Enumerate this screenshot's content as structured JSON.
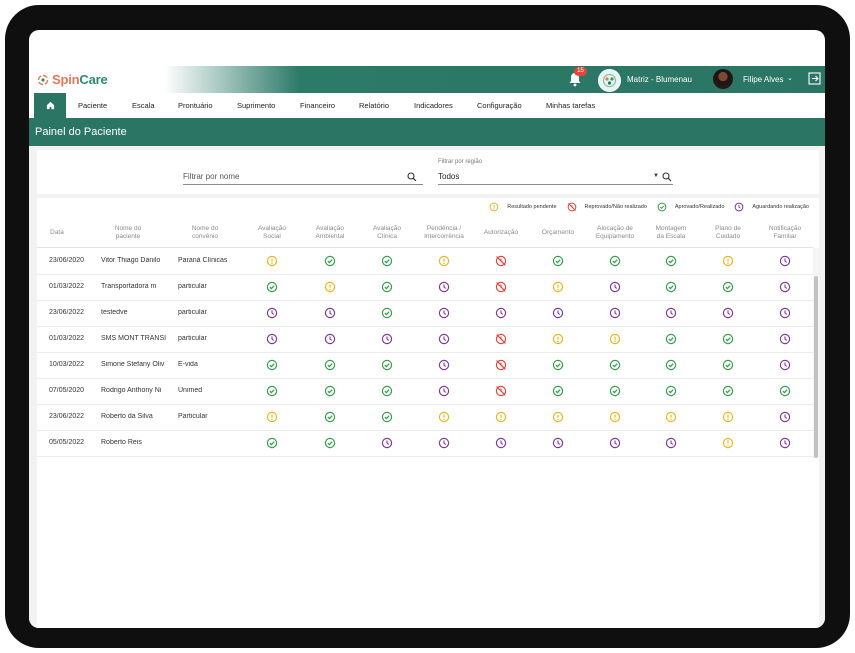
{
  "app": {
    "brand_part1": "Spin",
    "brand_part2": "Care"
  },
  "header": {
    "notification_count": "15",
    "org_name": "Matriz - Blumenau",
    "user_name": "Filipe Alves"
  },
  "nav": {
    "items": [
      "Paciente",
      "Escala",
      "Prontuário",
      "Suprimento",
      "Financeiro",
      "Relatório",
      "Indicadores",
      "Configuração",
      "Minhas tarefas"
    ]
  },
  "page": {
    "title": "Painel do Paciente"
  },
  "filters": {
    "name_placeholder": "Filtrar por nome",
    "region_label": "Filtrar por região",
    "region_value": "Todos"
  },
  "legend": [
    {
      "status": "pending",
      "label": "Resultado pendente"
    },
    {
      "status": "rejected",
      "label": "Reprovado/Não realizado"
    },
    {
      "status": "approved",
      "label": "Aprovado/Realizado"
    },
    {
      "status": "waiting",
      "label": "Aguardando realização"
    }
  ],
  "colors": {
    "teal": "#2b7564",
    "pending": "#e5b52a",
    "rejected": "#d8493f",
    "approved": "#3a9b4c",
    "waiting": "#7e3b93"
  },
  "table": {
    "columns": [
      "Data",
      "Nome do\npaciente",
      "Nome do\nconvênio",
      "Avaliação\nSocial",
      "Avaliação\nAmbiental",
      "Avaliação\nClínica",
      "Pendência /\nIntercorrência",
      "Autorização",
      "Orçamento",
      "Alocação de\nEquipamento",
      "Montagem\nda Escala",
      "Plano de\nCuidado",
      "Notificação\nFamiliar"
    ],
    "rows": [
      {
        "date": "23/06/2020",
        "patient": "Vitor Thiago Danilo",
        "insurer": "Paraná Clínicas",
        "status": [
          "pending",
          "approved",
          "approved",
          "pending",
          "rejected",
          "approved",
          "approved",
          "approved",
          "pending",
          "waiting"
        ]
      },
      {
        "date": "01/03/2022",
        "patient": "Transportadora m",
        "insurer": "particular",
        "status": [
          "approved",
          "pending",
          "approved",
          "waiting",
          "rejected",
          "pending",
          "waiting",
          "approved",
          "approved",
          "waiting"
        ]
      },
      {
        "date": "23/06/2022",
        "patient": "testedve",
        "insurer": "particular",
        "status": [
          "waiting",
          "waiting",
          "approved",
          "waiting",
          "waiting",
          "waiting",
          "waiting",
          "waiting",
          "waiting",
          "waiting"
        ]
      },
      {
        "date": "01/03/2022",
        "patient": "SMS MONT TRANSI",
        "insurer": "particular",
        "status": [
          "waiting",
          "waiting",
          "waiting",
          "waiting",
          "rejected",
          "pending",
          "pending",
          "approved",
          "approved",
          "waiting"
        ]
      },
      {
        "date": "10/03/2022",
        "patient": "Simone Stefany Oliv",
        "insurer": "E-vida",
        "status": [
          "approved",
          "approved",
          "approved",
          "waiting",
          "rejected",
          "approved",
          "approved",
          "approved",
          "approved",
          "waiting"
        ]
      },
      {
        "date": "07/05/2020",
        "patient": "Rodrigo Anthony Ni",
        "insurer": "Unimed",
        "status": [
          "approved",
          "approved",
          "approved",
          "waiting",
          "rejected",
          "approved",
          "approved",
          "approved",
          "approved",
          "approved"
        ]
      },
      {
        "date": "23/06/2022",
        "patient": "Roberto da Silva",
        "insurer": "Particular",
        "status": [
          "pending",
          "approved",
          "approved",
          "pending",
          "pending",
          "pending",
          "pending",
          "pending",
          "pending",
          "waiting"
        ]
      },
      {
        "date": "05/05/2022",
        "patient": "Roberto Reis",
        "insurer": "",
        "status": [
          "approved",
          "approved",
          "waiting",
          "waiting",
          "waiting",
          "waiting",
          "waiting",
          "waiting",
          "pending",
          "waiting"
        ]
      }
    ]
  }
}
